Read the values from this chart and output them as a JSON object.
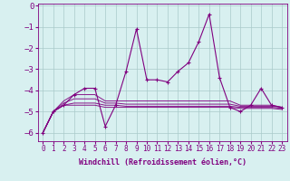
{
  "x": [
    0,
    1,
    2,
    3,
    4,
    5,
    6,
    7,
    8,
    9,
    10,
    11,
    12,
    13,
    14,
    15,
    16,
    17,
    18,
    19,
    20,
    21,
    22,
    23
  ],
  "windchill": [
    -6.0,
    -5.0,
    -4.7,
    -4.2,
    -3.9,
    -3.9,
    -5.7,
    -4.7,
    -3.1,
    -1.1,
    -3.5,
    -3.5,
    -3.6,
    -3.1,
    -2.7,
    -1.7,
    -0.4,
    -3.4,
    -4.8,
    -5.0,
    -4.7,
    -3.9,
    -4.7,
    -4.8
  ],
  "line2": [
    -6.0,
    -5.0,
    -4.5,
    -4.2,
    -4.2,
    -4.2,
    -4.5,
    -4.5,
    -4.5,
    -4.5,
    -4.5,
    -4.5,
    -4.5,
    -4.5,
    -4.5,
    -4.5,
    -4.5,
    -4.5,
    -4.5,
    -4.7,
    -4.7,
    -4.7,
    -4.7,
    -4.8
  ],
  "line3": [
    -6.0,
    -5.0,
    -4.6,
    -4.4,
    -4.4,
    -4.4,
    -4.6,
    -4.6,
    -4.65,
    -4.65,
    -4.65,
    -4.65,
    -4.65,
    -4.65,
    -4.65,
    -4.65,
    -4.65,
    -4.65,
    -4.65,
    -4.75,
    -4.75,
    -4.75,
    -4.75,
    -4.8
  ],
  "line4": [
    -6.0,
    -5.0,
    -4.7,
    -4.6,
    -4.6,
    -4.6,
    -4.7,
    -4.7,
    -4.75,
    -4.75,
    -4.75,
    -4.75,
    -4.75,
    -4.75,
    -4.75,
    -4.75,
    -4.75,
    -4.75,
    -4.75,
    -4.8,
    -4.8,
    -4.8,
    -4.8,
    -4.85
  ],
  "line5": [
    -6.0,
    -5.0,
    -4.7,
    -4.7,
    -4.7,
    -4.7,
    -4.8,
    -4.8,
    -4.8,
    -4.8,
    -4.8,
    -4.8,
    -4.8,
    -4.8,
    -4.8,
    -4.8,
    -4.8,
    -4.8,
    -4.8,
    -4.85,
    -4.85,
    -4.85,
    -4.85,
    -4.9
  ],
  "color": "#800080",
  "bg_color": "#d8f0f0",
  "grid_color": "#aacaca",
  "xlabel": "Windchill (Refroidissement éolien,°C)",
  "ylim": [
    -6.4,
    0.1
  ],
  "xlim": [
    -0.5,
    23.5
  ],
  "yticks": [
    0,
    -1,
    -2,
    -3,
    -4,
    -5,
    -6
  ],
  "xticks": [
    0,
    1,
    2,
    3,
    4,
    5,
    6,
    7,
    8,
    9,
    10,
    11,
    12,
    13,
    14,
    15,
    16,
    17,
    18,
    19,
    20,
    21,
    22,
    23
  ]
}
